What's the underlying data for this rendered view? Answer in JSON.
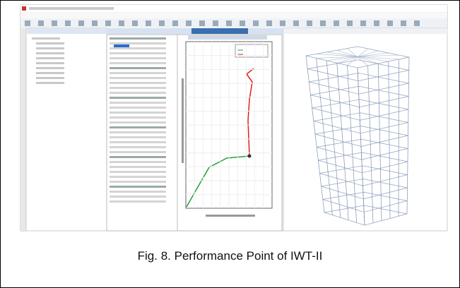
{
  "caption": "Fig. 8. Performance Point of IWT-II"
}
